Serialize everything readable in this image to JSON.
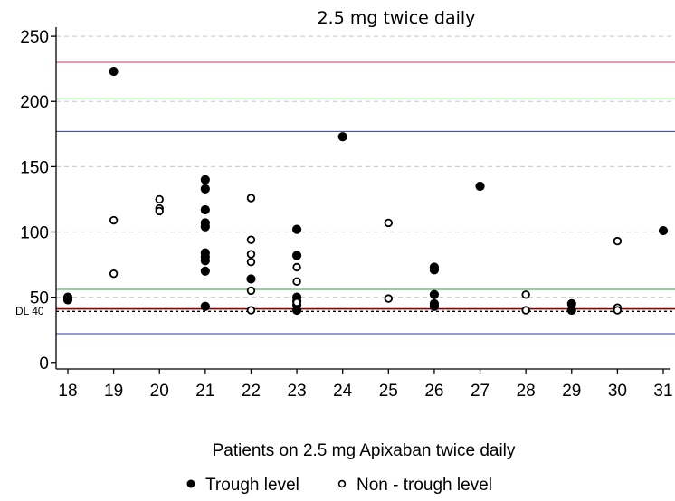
{
  "chart_data": {
    "type": "scatter",
    "title": "2.5 mg twice daily",
    "xlabel": "Patients on 2.5 mg Apixaban twice daily",
    "ylabel": "",
    "x_categories": [
      18,
      19,
      20,
      21,
      22,
      23,
      24,
      25,
      26,
      27,
      28,
      29,
      30,
      31
    ],
    "ylim": [
      -5,
      257
    ],
    "yticks": [
      0,
      50,
      100,
      150,
      200,
      250
    ],
    "grid": "dashed horizontal at y ticks",
    "legend_position": "bottom",
    "series": [
      {
        "name": "Trough level",
        "marker": "filled-circle",
        "color": "#000000",
        "points": [
          {
            "x": 18,
            "y": 48
          },
          {
            "x": 18,
            "y": 50
          },
          {
            "x": 19,
            "y": 223
          },
          {
            "x": 21,
            "y": 140
          },
          {
            "x": 21,
            "y": 133
          },
          {
            "x": 21,
            "y": 117
          },
          {
            "x": 21,
            "y": 107
          },
          {
            "x": 21,
            "y": 104
          },
          {
            "x": 21,
            "y": 84
          },
          {
            "x": 21,
            "y": 81
          },
          {
            "x": 21,
            "y": 78
          },
          {
            "x": 21,
            "y": 70
          },
          {
            "x": 21,
            "y": 43
          },
          {
            "x": 22,
            "y": 64
          },
          {
            "x": 23,
            "y": 102
          },
          {
            "x": 23,
            "y": 82
          },
          {
            "x": 23,
            "y": 50
          },
          {
            "x": 23,
            "y": 47
          },
          {
            "x": 23,
            "y": 44
          },
          {
            "x": 23,
            "y": 40
          },
          {
            "x": 24,
            "y": 173
          },
          {
            "x": 26,
            "y": 73
          },
          {
            "x": 26,
            "y": 71
          },
          {
            "x": 26,
            "y": 52
          },
          {
            "x": 26,
            "y": 45
          },
          {
            "x": 26,
            "y": 43
          },
          {
            "x": 27,
            "y": 135
          },
          {
            "x": 29,
            "y": 45
          },
          {
            "x": 29,
            "y": 40
          },
          {
            "x": 31,
            "y": 101
          }
        ]
      },
      {
        "name": "Non - trough level",
        "marker": "open-circle",
        "color": "#000000",
        "points": [
          {
            "x": 19,
            "y": 109
          },
          {
            "x": 19,
            "y": 68
          },
          {
            "x": 20,
            "y": 125
          },
          {
            "x": 20,
            "y": 118
          },
          {
            "x": 20,
            "y": 116
          },
          {
            "x": 22,
            "y": 126
          },
          {
            "x": 22,
            "y": 94
          },
          {
            "x": 22,
            "y": 83
          },
          {
            "x": 22,
            "y": 77
          },
          {
            "x": 22,
            "y": 55
          },
          {
            "x": 22,
            "y": 40
          },
          {
            "x": 23,
            "y": 73
          },
          {
            "x": 23,
            "y": 62
          },
          {
            "x": 23,
            "y": 46
          },
          {
            "x": 25,
            "y": 107
          },
          {
            "x": 25,
            "y": 49
          },
          {
            "x": 28,
            "y": 52
          },
          {
            "x": 28,
            "y": 40
          },
          {
            "x": 30,
            "y": 93
          },
          {
            "x": 30,
            "y": 42
          },
          {
            "x": 30,
            "y": 40
          }
        ]
      }
    ],
    "reference_lines": [
      {
        "y": 230,
        "color": "#cc3366"
      },
      {
        "y": 202,
        "color": "#2ea02e"
      },
      {
        "y": 177,
        "color": "#3333aa"
      },
      {
        "y": 56,
        "color": "#2ea02e"
      },
      {
        "y": 40,
        "color": "#8b0000",
        "style": "solid-with-dashed",
        "label": "DL 40"
      },
      {
        "y": 22,
        "color": "#3333aa"
      }
    ],
    "legend": [
      {
        "label": "Trough level",
        "marker": "filled-circle"
      },
      {
        "label": "Non - trough level",
        "marker": "open-circle"
      }
    ]
  }
}
